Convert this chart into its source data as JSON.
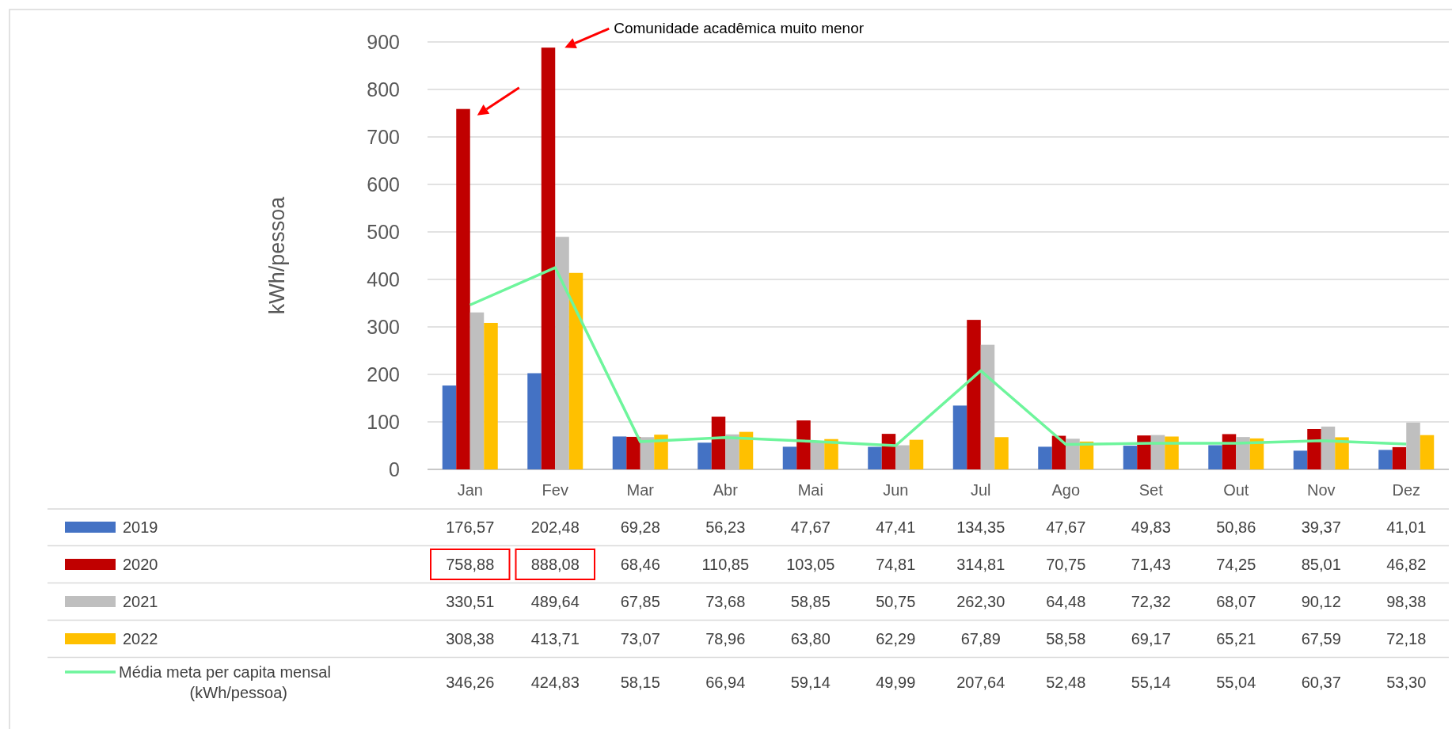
{
  "chart_data": {
    "type": "bar",
    "ylabel": "kWh/pessoa",
    "categories": [
      "Jan",
      "Fev",
      "Mar",
      "Abr",
      "Mai",
      "Jun",
      "Jul",
      "Ago",
      "Set",
      "Out",
      "Nov",
      "Dez"
    ],
    "series": [
      {
        "name": "2019",
        "color": "#4472c4",
        "values": [
          176.57,
          202.48,
          69.28,
          56.23,
          47.67,
          47.41,
          134.35,
          47.67,
          49.83,
          50.86,
          39.37,
          41.01
        ],
        "value_labels": [
          "176,57",
          "202,48",
          "69,28",
          "56,23",
          "47,67",
          "47,41",
          "134,35",
          "47,67",
          "49,83",
          "50,86",
          "39,37",
          "41,01"
        ]
      },
      {
        "name": "2020",
        "color": "#c00000",
        "values": [
          758.88,
          888.08,
          68.46,
          110.85,
          103.05,
          74.81,
          314.81,
          70.75,
          71.43,
          74.25,
          85.01,
          46.82
        ],
        "value_labels": [
          "758,88",
          "888,08",
          "68,46",
          "110,85",
          "103,05",
          "74,81",
          "314,81",
          "70,75",
          "71,43",
          "74,25",
          "85,01",
          "46,82"
        ]
      },
      {
        "name": "2021",
        "color": "#bfbfbf",
        "values": [
          330.51,
          489.64,
          67.85,
          73.68,
          58.85,
          50.75,
          262.3,
          64.48,
          72.32,
          68.07,
          90.12,
          98.38
        ],
        "value_labels": [
          "330,51",
          "489,64",
          "67,85",
          "73,68",
          "58,85",
          "50,75",
          "262,30",
          "64,48",
          "72,32",
          "68,07",
          "90,12",
          "98,38"
        ]
      },
      {
        "name": "2022",
        "color": "#ffc000",
        "values": [
          308.38,
          413.71,
          73.07,
          78.96,
          63.8,
          62.29,
          67.89,
          58.58,
          69.17,
          65.21,
          67.59,
          72.18
        ],
        "value_labels": [
          "308,38",
          "413,71",
          "73,07",
          "78,96",
          "63,80",
          "62,29",
          "67,89",
          "58,58",
          "69,17",
          "65,21",
          "67,59",
          "72,18"
        ]
      },
      {
        "name": "Média meta per capita mensal (kWh/pessoa)",
        "type": "line",
        "color": "#6ef59c",
        "values": [
          346.26,
          424.83,
          58.15,
          66.94,
          59.14,
          49.99,
          207.64,
          52.48,
          55.14,
          55.04,
          60.37,
          53.3
        ],
        "value_labels": [
          "346,26",
          "424,83",
          "58,15",
          "66,94",
          "59,14",
          "49,99",
          "207,64",
          "52,48",
          "55,14",
          "55,04",
          "60,37",
          "53,30"
        ]
      }
    ],
    "ylim": [
      0,
      900
    ],
    "yticks": [
      0,
      100,
      200,
      300,
      400,
      500,
      600,
      700,
      800,
      900
    ],
    "grid": "y",
    "legend": "bottom",
    "line_style": "solid",
    "marker": "none",
    "annotations": [
      "Comunidade acadêmica muito menor"
    ]
  }
}
